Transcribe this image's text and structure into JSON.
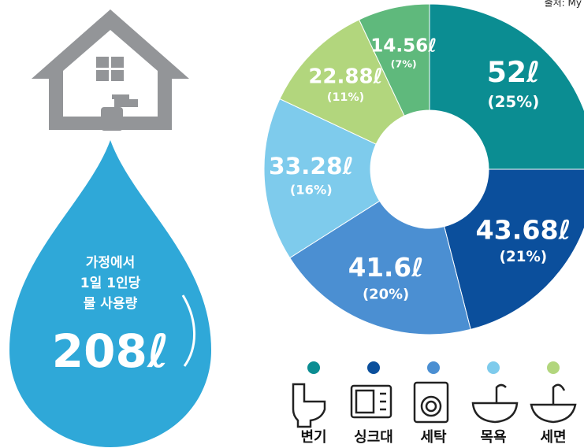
{
  "source": "출처: My",
  "drop": {
    "lines": [
      "가정에서",
      "1일 1인당",
      "물 사용량"
    ],
    "total": 208,
    "total_label": "208ℓ"
  },
  "chart_data": {
    "type": "pie",
    "categories": [
      "변기",
      "싱크대",
      "세탁",
      "목욕",
      "세면",
      null
    ],
    "values": [
      52,
      43.68,
      41.6,
      33.28,
      22.88,
      14.56
    ],
    "value_labels": [
      "52ℓ",
      "43.68ℓ",
      "41.6ℓ",
      "33.28ℓ",
      "22.88ℓ",
      "14.56ℓ"
    ],
    "percents": [
      25,
      21,
      20,
      16,
      11,
      7
    ],
    "percent_labels": [
      "(25%)",
      "(21%)",
      "(20%)",
      "(16%)",
      "(11%)",
      "(7%)"
    ],
    "colors": [
      "#0b8d92",
      "#0b4f9c",
      "#4b8fd2",
      "#7ecbec",
      "#b2d67d",
      "#5fb97c"
    ],
    "donut": true
  }
}
